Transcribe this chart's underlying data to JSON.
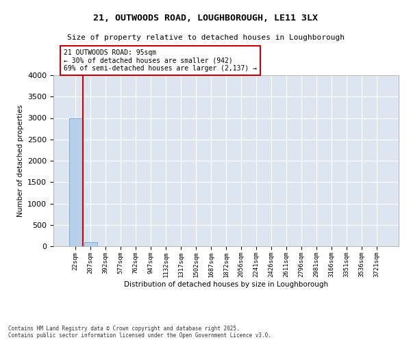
{
  "title_line1": "21, OUTWOODS ROAD, LOUGHBOROUGH, LE11 3LX",
  "title_line2": "Size of property relative to detached houses in Loughborough",
  "xlabel": "Distribution of detached houses by size in Loughborough",
  "ylabel": "Number of detached properties",
  "footer_line1": "Contains HM Land Registry data © Crown copyright and database right 2025.",
  "footer_line2": "Contains public sector information licensed under the Open Government Licence v3.0.",
  "categories": [
    "22sqm",
    "207sqm",
    "392sqm",
    "577sqm",
    "762sqm",
    "947sqm",
    "1132sqm",
    "1317sqm",
    "1502sqm",
    "1687sqm",
    "1872sqm",
    "2056sqm",
    "2241sqm",
    "2426sqm",
    "2611sqm",
    "2796sqm",
    "2981sqm",
    "3166sqm",
    "3351sqm",
    "3536sqm",
    "3721sqm"
  ],
  "values": [
    3000,
    100,
    5,
    2,
    1,
    1,
    1,
    1,
    1,
    1,
    1,
    1,
    1,
    1,
    1,
    1,
    1,
    1,
    1,
    1,
    1
  ],
  "bar_color": "#b8d0ea",
  "bar_edge_color": "#7aadd4",
  "background_color": "#dde5f0",
  "grid_color": "#ffffff",
  "ylim": [
    0,
    4000
  ],
  "yticks": [
    0,
    500,
    1000,
    1500,
    2000,
    2500,
    3000,
    3500,
    4000
  ],
  "red_line_x": 0.5,
  "annotation_title": "21 OUTWOODS ROAD: 95sqm",
  "annotation_line2": "← 30% of detached houses are smaller (942)",
  "annotation_line3": "69% of semi-detached houses are larger (2,137) →",
  "annotation_box_color": "#ffffff",
  "annotation_border_color": "#cc0000",
  "red_line_color": "#cc0000",
  "figwidth": 6.0,
  "figheight": 5.0,
  "dpi": 100
}
